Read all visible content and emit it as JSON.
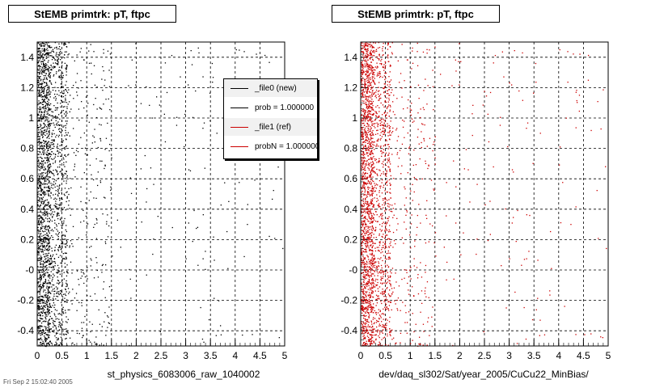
{
  "chart_data": [
    {
      "type": "scatter",
      "title": "StEMB primtrk: pT, ftpc",
      "xlabel": "st_physics_6083006_raw_1040002",
      "ylabel": "",
      "xlim": [
        0,
        5
      ],
      "ylim": [
        -0.5,
        1.5
      ],
      "x_ticks": [
        "0",
        "0.5",
        "1",
        "1.5",
        "2",
        "2.5",
        "3",
        "3.5",
        "4",
        "4.5",
        "5"
      ],
      "y_ticks": [
        "-0.4",
        "-0.2",
        "-0",
        "0.2",
        "0.4",
        "0.6",
        "0.8",
        "1",
        "1.2",
        "1.4"
      ],
      "grid": true,
      "series": [
        {
          "name": "_file0 (new)",
          "color": "#000000",
          "density": "concentrated at pT below 0.6, sparse to 5"
        }
      ]
    },
    {
      "type": "scatter",
      "title": "StEMB primtrk: pT, ftpc",
      "xlabel": "dev/daq_sl302/Sat/year_2005/CuCu22_MinBias/",
      "ylabel": "",
      "xlim": [
        0,
        5
      ],
      "ylim": [
        -0.5,
        1.5
      ],
      "x_ticks": [
        "0",
        "0.5",
        "1",
        "1.5",
        "2",
        "2.5",
        "3",
        "3.5",
        "4",
        "4.5",
        "5"
      ],
      "y_ticks": [
        "-0.4",
        "-0.2",
        "-0",
        "0.2",
        "0.4",
        "0.6",
        "0.8",
        "1",
        "1.2",
        "1.4"
      ],
      "grid": true,
      "series": [
        {
          "name": "_file1 (ref)",
          "color": "#cc0000",
          "density": "concentrated at pT below 0.6, sparse to 5"
        }
      ]
    }
  ],
  "legend": {
    "placement": "top-right of left plot",
    "entries": [
      {
        "label": "_file0 (new)",
        "color": "#000000"
      },
      {
        "label": "prob = 1.000000",
        "color": "#000000"
      },
      {
        "label": "_file1 (ref)",
        "color": "#cc0000"
      },
      {
        "label": "probN = 1.000000",
        "color": "#cc0000"
      }
    ]
  },
  "footer": "Fri Sep 2 15:02:40 2005"
}
